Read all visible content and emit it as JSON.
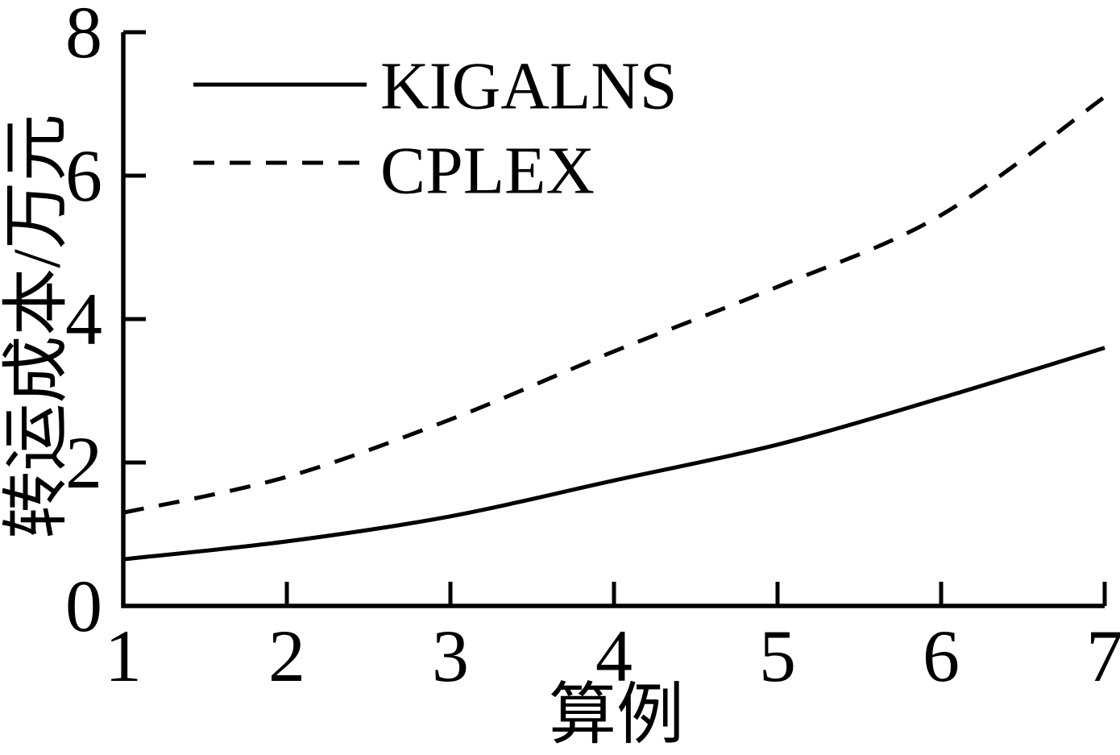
{
  "chart_data": {
    "type": "line",
    "title": "",
    "xlabel": "算例",
    "ylabel": "转运成本/万元",
    "x": [
      1,
      2,
      3,
      4,
      5,
      6,
      7
    ],
    "series": [
      {
        "name": "KIGALNS",
        "line_style": "solid",
        "values": [
          0.65,
          0.9,
          1.25,
          1.75,
          2.25,
          2.9,
          3.6
        ]
      },
      {
        "name": "CPLEX",
        "line_style": "dashed",
        "values": [
          1.3,
          1.8,
          2.6,
          3.55,
          4.45,
          5.45,
          7.1
        ]
      }
    ],
    "xlim": [
      1,
      7
    ],
    "ylim": [
      0,
      8
    ],
    "x_ticks": [
      "1",
      "2",
      "3",
      "4",
      "5",
      "6",
      "7"
    ],
    "y_ticks": [
      "0",
      "2",
      "4",
      "6",
      "8"
    ],
    "grid": false,
    "legend_position": "top-left",
    "line_color": "#000000",
    "background_color": "#ffffff"
  }
}
